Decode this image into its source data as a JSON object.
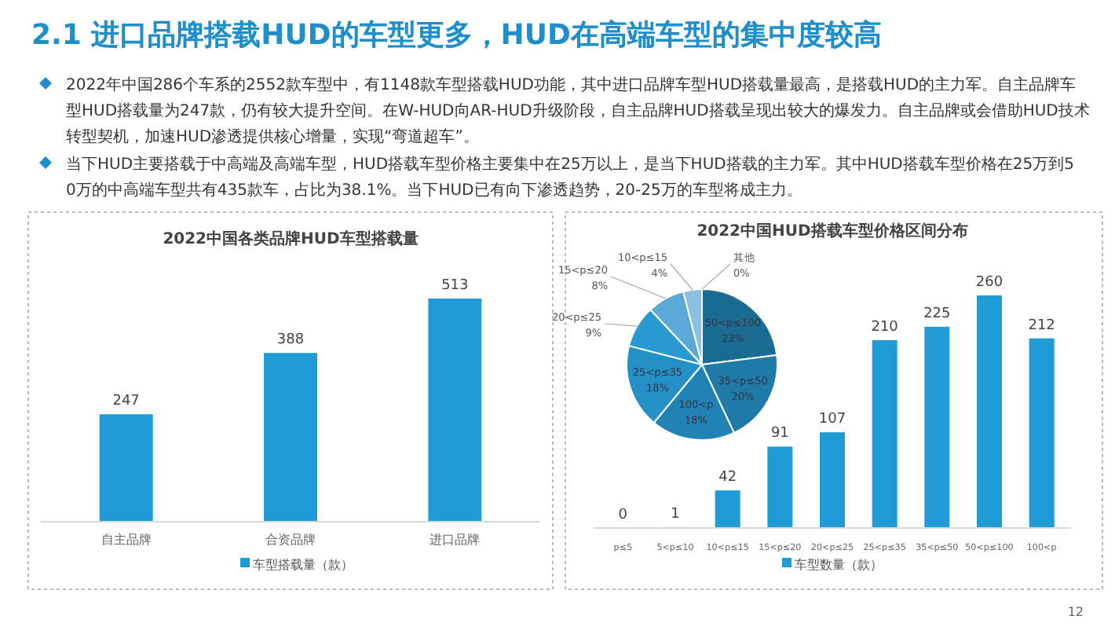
{
  "chart_data": [
    {
      "type": "other",
      "title": "2.1 进口品牌搭载HUD的车型更多，HUD在高端车型的集中度较高",
      "annotations": [
        "2022年中国286个车系的2552款车型中，有1148款车型搭载HUD功能，其中进口品牌车型HUD搭载量最高，是搭载HUD的主力军。自主品牌车型HUD搭载量为247款，仍有较大提升空间。在W-HUD向AR-HUD升级阶段，自主品牌HUD搭载呈现出较大的爆发力。自主品牌或会借助HUD技术转型契机，加速HUD渗透提供核心增量，实现“弯道超车”。",
        "当下HUD主要搭载于中高端及高端车型，HUD搭载车型价格主要集中在25万以上，是当下HUD搭载的主力军。其中HUD搭载车型价格在25万到50万的中高端车型共有435款车，占比为38.1%。当下HUD已有向下渗透趋势，20-25万的车型将成主力。",
        "12"
      ]
    },
    {
      "type": "bar",
      "title": "2022中国各类品牌HUD车型搭载量",
      "categories": [
        "自主品牌",
        "合资品牌",
        "进口品牌"
      ],
      "series": [
        {
          "name": "车型搭载量（款）",
          "color": "#1f9bd5",
          "values": [
            247,
            388,
            513
          ]
        }
      ],
      "data_labels": true,
      "legend": "bottom"
    },
    {
      "type": "pie",
      "categories": [
        "50<p≤100",
        "35<p≤50",
        "100<p",
        "25<p≤35",
        "20<p≤25",
        "15<p≤20",
        "10<p≤15",
        "其他"
      ],
      "values": [
        23,
        20,
        18,
        18,
        9,
        8,
        4,
        0
      ],
      "value_labels": [
        "23%",
        "20%",
        "18%",
        "18%",
        "9%",
        "8%",
        "4%",
        "0%"
      ],
      "colors": [
        "#1b6b93",
        "#1f7aa8",
        "#2183b5",
        "#2590c6",
        "#2a9ad3",
        "#5aa9d6",
        "#8cc0e0",
        "#b0d0e8"
      ]
    },
    {
      "type": "bar",
      "title": "2022中国HUD搭载车型价格区间分布",
      "categories": [
        "p≤5",
        "5<p≤10",
        "10<p≤15",
        "15<p≤20",
        "20<p≤25",
        "25<p≤35",
        "35<p≤50",
        "50<p≤100",
        "100<p"
      ],
      "series": [
        {
          "name": "车型数量（款）",
          "color": "#1f9bd5",
          "values": [
            0,
            1,
            42,
            91,
            107,
            210,
            225,
            260,
            212
          ]
        }
      ],
      "data_labels": true,
      "legend": "bottom"
    }
  ]
}
